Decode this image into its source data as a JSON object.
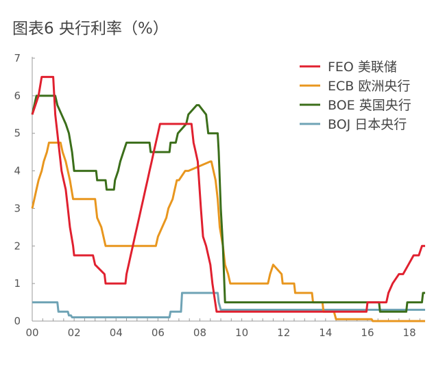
{
  "title": "图表6 央行利率（%）",
  "chart_data": {
    "type": "line",
    "title": "图表6 央行利率（%）",
    "xlabel": "",
    "ylabel": "",
    "xlim": [
      2000,
      2018.75
    ],
    "ylim": [
      0,
      7
    ],
    "x_tick_values": [
      2000,
      2002,
      2004,
      2006,
      2008,
      2010,
      2012,
      2014,
      2016,
      2018
    ],
    "x_tick_labels": [
      "00",
      "02",
      "04",
      "06",
      "08",
      "10",
      "12",
      "14",
      "16",
      "18"
    ],
    "y_ticks": [
      0,
      1,
      2,
      3,
      4,
      5,
      6,
      7
    ],
    "legend_position": "top-right",
    "series": [
      {
        "name": "FEO 美联储",
        "color": "#e0202f",
        "x": [
          2000.0,
          2000.15,
          2000.3,
          2000.45,
          2000.6,
          2000.75,
          2001.0,
          2001.05,
          2001.1,
          2001.2,
          2001.3,
          2001.4,
          2001.5,
          2001.6,
          2001.7,
          2001.8,
          2001.95,
          2002.0,
          2002.9,
          2003.0,
          2003.45,
          2003.5,
          2004.45,
          2004.5,
          2004.6,
          2004.7,
          2004.8,
          2004.9,
          2005.0,
          2005.1,
          2005.2,
          2005.3,
          2005.4,
          2005.5,
          2005.6,
          2005.7,
          2005.8,
          2005.9,
          2006.0,
          2006.1,
          2006.2,
          2006.3,
          2006.4,
          2006.5,
          2007.6,
          2007.7,
          2007.8,
          2007.9,
          2008.05,
          2008.15,
          2008.3,
          2008.5,
          2008.6,
          2008.8,
          2008.95,
          2009.0,
          2015.95,
          2016.0,
          2016.9,
          2017.0,
          2017.2,
          2017.5,
          2017.7,
          2017.95,
          2018.2,
          2018.45,
          2018.6,
          2018.75
        ],
        "values": [
          5.5,
          5.75,
          6.0,
          6.5,
          6.5,
          6.5,
          6.5,
          6.0,
          5.5,
          5.0,
          4.5,
          4.0,
          3.75,
          3.5,
          3.0,
          2.5,
          2.0,
          1.75,
          1.75,
          1.5,
          1.25,
          1.0,
          1.0,
          1.25,
          1.5,
          1.75,
          2.0,
          2.25,
          2.5,
          2.75,
          3.0,
          3.25,
          3.5,
          3.75,
          4.0,
          4.25,
          4.5,
          4.75,
          5.0,
          5.25,
          5.25,
          5.25,
          5.25,
          5.25,
          5.25,
          4.75,
          4.5,
          4.25,
          3.0,
          2.25,
          2.0,
          1.5,
          1.0,
          0.25,
          0.25,
          0.25,
          0.25,
          0.5,
          0.5,
          0.75,
          1.0,
          1.25,
          1.25,
          1.5,
          1.75,
          1.75,
          2.0,
          2.0
        ]
      },
      {
        "name": "ECB 欧洲央行",
        "color": "#e8961e",
        "x": [
          2000.0,
          2000.1,
          2000.2,
          2000.3,
          2000.45,
          2000.55,
          2000.7,
          2000.8,
          2001.35,
          2001.45,
          2001.6,
          2001.8,
          2001.95,
          2003.0,
          2003.1,
          2003.3,
          2003.5,
          2005.9,
          2006.0,
          2006.2,
          2006.4,
          2006.5,
          2006.7,
          2006.8,
          2006.9,
          2007.0,
          2007.3,
          2007.45,
          2008.5,
          2008.55,
          2008.75,
          2008.85,
          2008.95,
          2009.1,
          2009.2,
          2009.35,
          2009.45,
          2011.25,
          2011.35,
          2011.5,
          2011.9,
          2011.95,
          2012.5,
          2012.55,
          2013.35,
          2013.4,
          2013.85,
          2013.9,
          2014.4,
          2014.5,
          2016.2,
          2016.25,
          2018.75
        ],
        "values": [
          3.0,
          3.25,
          3.5,
          3.75,
          4.0,
          4.25,
          4.5,
          4.75,
          4.75,
          4.5,
          4.25,
          3.75,
          3.25,
          3.25,
          2.75,
          2.5,
          2.0,
          2.0,
          2.25,
          2.5,
          2.75,
          3.0,
          3.25,
          3.5,
          3.75,
          3.75,
          4.0,
          4.0,
          4.25,
          4.25,
          3.75,
          3.25,
          2.5,
          2.0,
          1.5,
          1.25,
          1.0,
          1.0,
          1.25,
          1.5,
          1.25,
          1.0,
          1.0,
          0.75,
          0.75,
          0.5,
          0.5,
          0.25,
          0.25,
          0.05,
          0.05,
          0.0,
          0.0
        ]
      },
      {
        "name": "BOE 英国央行",
        "color": "#3b6e1a",
        "x": [
          2000.0,
          2000.1,
          2000.2,
          2001.1,
          2001.2,
          2001.4,
          2001.6,
          2001.75,
          2001.9,
          2002.0,
          2003.05,
          2003.1,
          2003.5,
          2003.55,
          2003.9,
          2003.95,
          2004.1,
          2004.2,
          2004.35,
          2004.5,
          2004.65,
          2005.6,
          2005.65,
          2006.55,
          2006.6,
          2006.85,
          2006.95,
          2007.35,
          2007.45,
          2007.85,
          2007.95,
          2008.3,
          2008.4,
          2008.85,
          2008.9,
          2009.0,
          2009.1,
          2009.2,
          2016.55,
          2016.6,
          2017.85,
          2017.9,
          2018.6,
          2018.65,
          2018.75
        ],
        "values": [
          5.5,
          5.75,
          6.0,
          6.0,
          5.75,
          5.5,
          5.25,
          5.0,
          4.5,
          4.0,
          4.0,
          3.75,
          3.75,
          3.5,
          3.5,
          3.75,
          4.0,
          4.25,
          4.5,
          4.75,
          4.75,
          4.75,
          4.5,
          4.5,
          4.75,
          4.75,
          5.0,
          5.25,
          5.5,
          5.75,
          5.75,
          5.5,
          5.0,
          5.0,
          4.5,
          3.0,
          2.0,
          0.5,
          0.5,
          0.25,
          0.25,
          0.5,
          0.5,
          0.75,
          0.75
        ]
      },
      {
        "name": "BOJ 日本央行",
        "color": "#6fa3b5",
        "x": [
          2000.0,
          2001.2,
          2001.25,
          2001.7,
          2001.75,
          2001.85,
          2001.9,
          2006.55,
          2006.6,
          2007.1,
          2007.15,
          2008.85,
          2008.9,
          2009.0,
          2009.05,
          2018.75
        ],
        "values": [
          0.5,
          0.5,
          0.25,
          0.25,
          0.15,
          0.15,
          0.1,
          0.1,
          0.25,
          0.25,
          0.75,
          0.75,
          0.5,
          0.3,
          0.3,
          0.3
        ]
      }
    ]
  }
}
